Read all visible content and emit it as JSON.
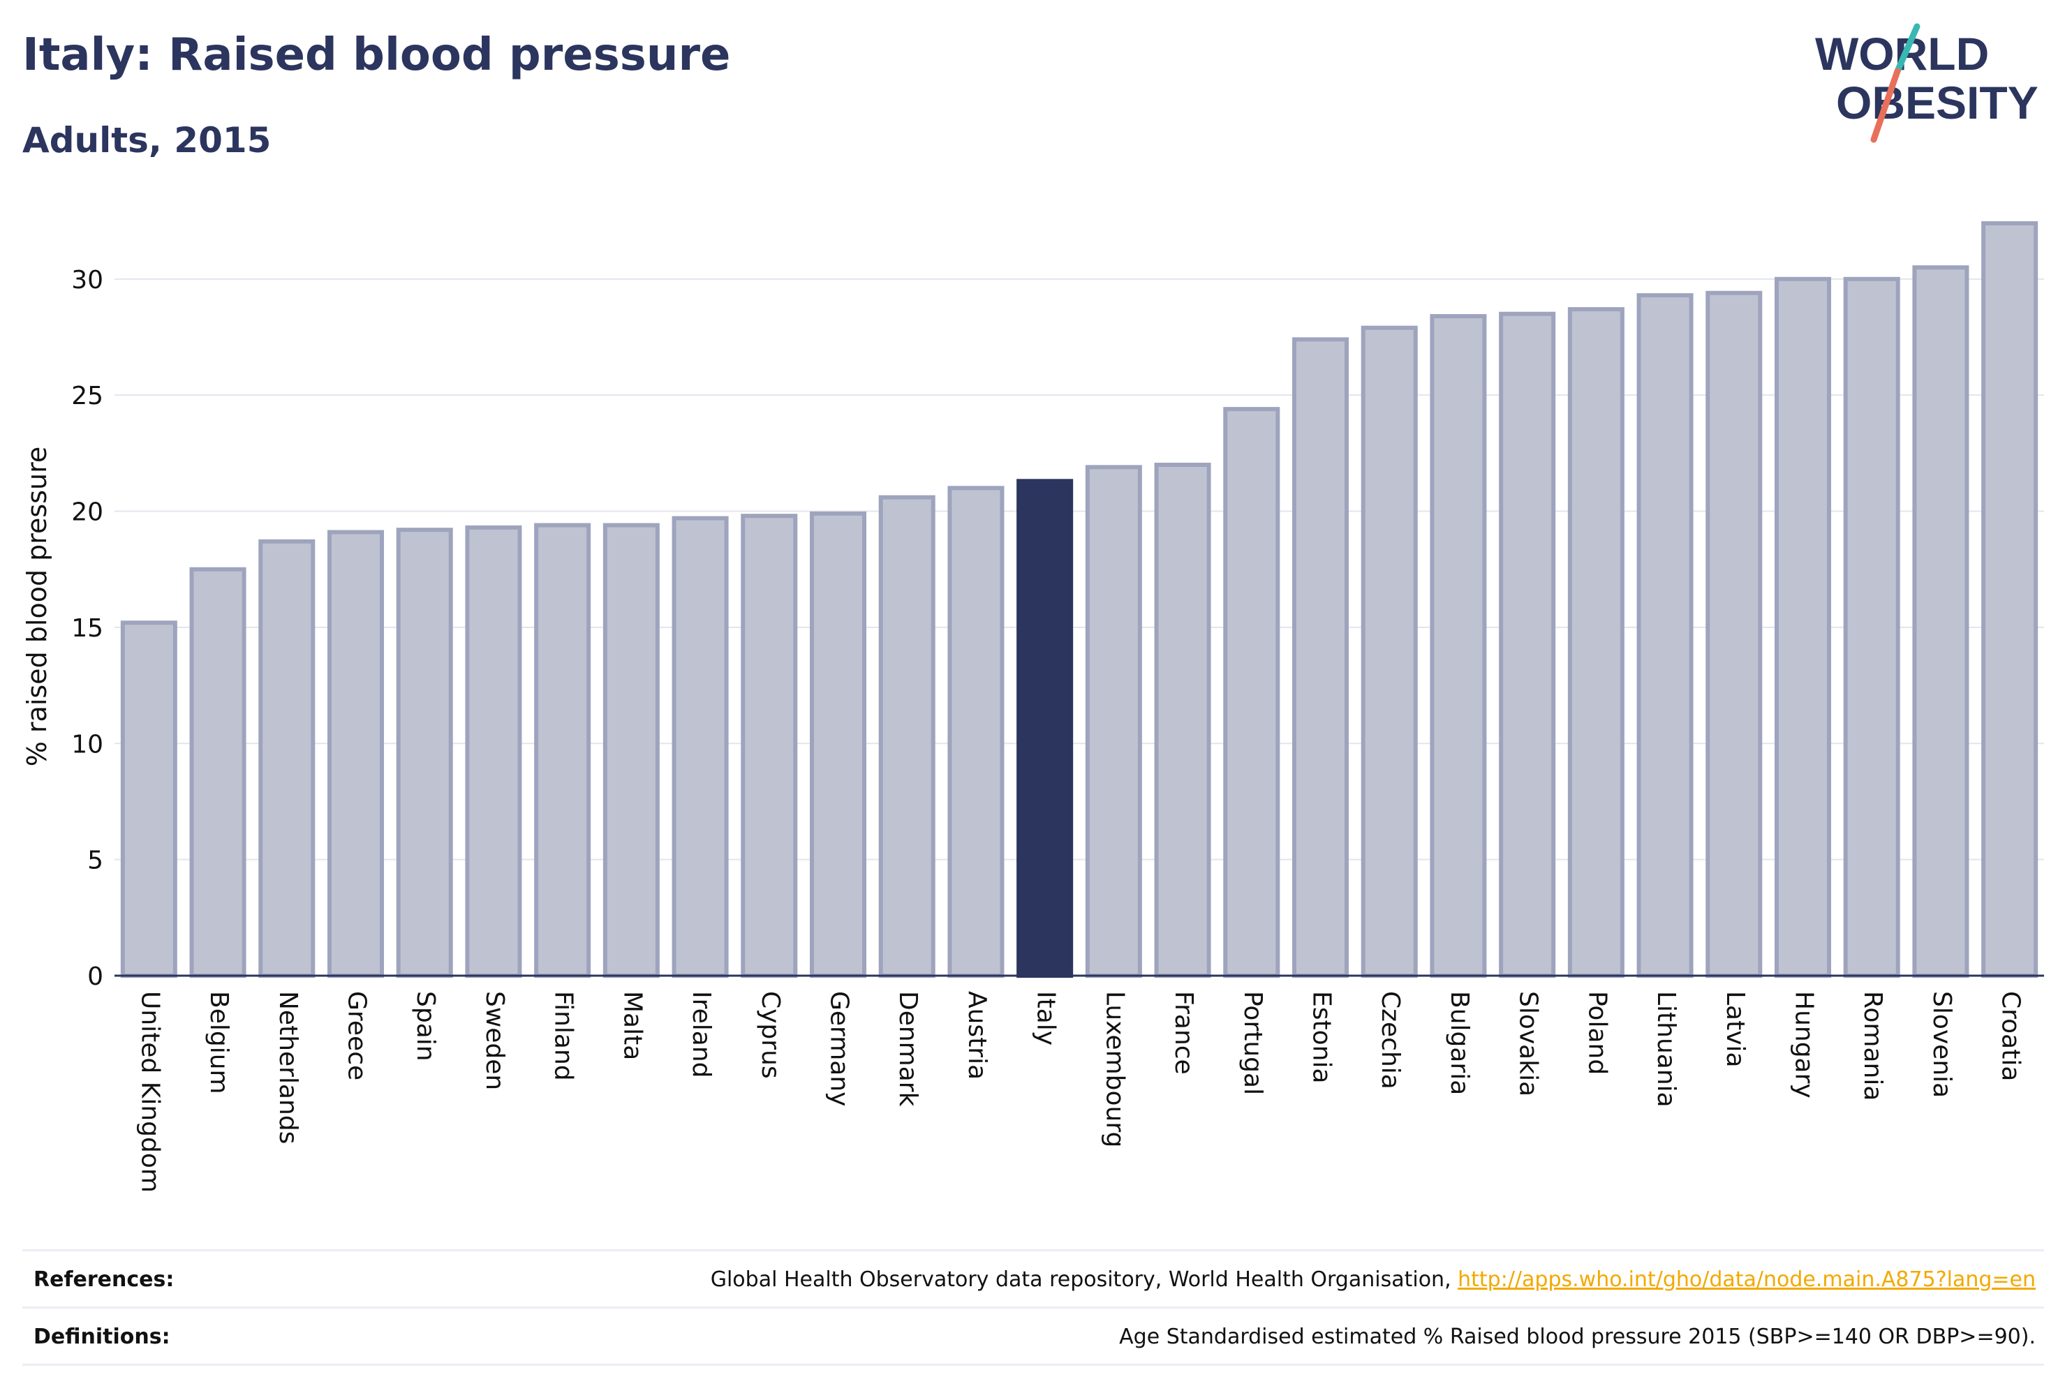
{
  "header": {
    "title": "Italy: Raised blood pressure",
    "subtitle": "Adults, 2015"
  },
  "logo": {
    "line1": "WORLD",
    "line2": "OBESITY",
    "slash_color_top": "#39b8b3",
    "slash_color_bottom": "#e8705a"
  },
  "colors": {
    "bar_default": "#bfc3d1",
    "bar_border": "#9ea4bd",
    "bar_highlight": "#2b355e",
    "text_dark": "#2b355e",
    "link": "#f2a900",
    "grid": "#e3e5ee"
  },
  "chart_data": {
    "type": "bar",
    "ylabel": "% raised blood pressure",
    "ylim": [
      0,
      33
    ],
    "yticks": [
      0,
      5,
      10,
      15,
      20,
      25,
      30
    ],
    "grid": true,
    "highlight": "Italy",
    "categories": [
      "United Kingdom",
      "Belgium",
      "Netherlands",
      "Greece",
      "Spain",
      "Sweden",
      "Finland",
      "Malta",
      "Ireland",
      "Cyprus",
      "Germany",
      "Denmark",
      "Austria",
      "Italy",
      "Luxembourg",
      "France",
      "Portugal",
      "Estonia",
      "Czechia",
      "Bulgaria",
      "Slovakia",
      "Poland",
      "Lithuania",
      "Latvia",
      "Hungary",
      "Romania",
      "Slovenia",
      "Croatia"
    ],
    "values": [
      15.2,
      17.5,
      18.7,
      19.1,
      19.2,
      19.3,
      19.4,
      19.4,
      19.7,
      19.8,
      19.9,
      20.6,
      21.0,
      21.3,
      21.9,
      22.0,
      24.4,
      27.4,
      27.9,
      28.4,
      28.5,
      28.7,
      29.3,
      29.4,
      30.0,
      30.0,
      30.5,
      32.4
    ]
  },
  "footer": {
    "references_label": "References:",
    "references_text": "Global Health Observatory data repository, World Health Organisation, ",
    "references_link": "http://apps.who.int/gho/data/node.main.A875?lang=en",
    "definitions_label": "Definitions:",
    "definitions_text": "Age Standardised estimated % Raised blood pressure 2015 (SBP>=140 OR DBP>=90)."
  }
}
